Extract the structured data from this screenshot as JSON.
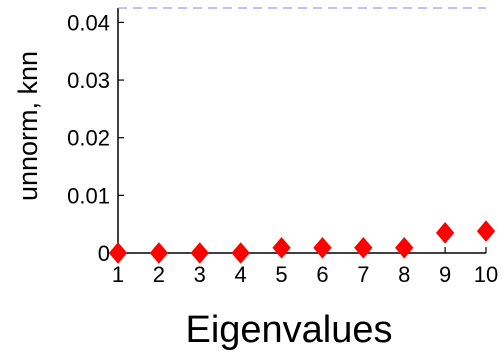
{
  "chart_data": {
    "type": "scatter",
    "x": [
      1,
      2,
      3,
      4,
      5,
      6,
      7,
      8,
      9,
      10
    ],
    "series": [
      {
        "values": [
          0.0,
          0.0,
          0.0,
          0.0,
          0.0009,
          0.0009,
          0.0009,
          0.0009,
          0.0035,
          0.0038
        ],
        "marker": "diamond",
        "color": "#ff0000"
      }
    ],
    "reference_line": {
      "y": 0.0425,
      "style": "dashed",
      "color": "#8080ff"
    },
    "xlabel": "Eigenvalues",
    "ylabel": "unnorm, knn",
    "xlim": [
      1,
      10
    ],
    "ylim": [
      0,
      0.0425
    ],
    "xticks": [
      "1",
      "2",
      "3",
      "4",
      "5",
      "6",
      "7",
      "8",
      "9",
      "10"
    ],
    "yticks": [
      {
        "value": 0,
        "label": "0"
      },
      {
        "value": 0.01,
        "label": "0.01"
      },
      {
        "value": 0.02,
        "label": "0.02"
      },
      {
        "value": 0.03,
        "label": "0.03"
      },
      {
        "value": 0.04,
        "label": "0.04"
      }
    ],
    "grid": false
  }
}
